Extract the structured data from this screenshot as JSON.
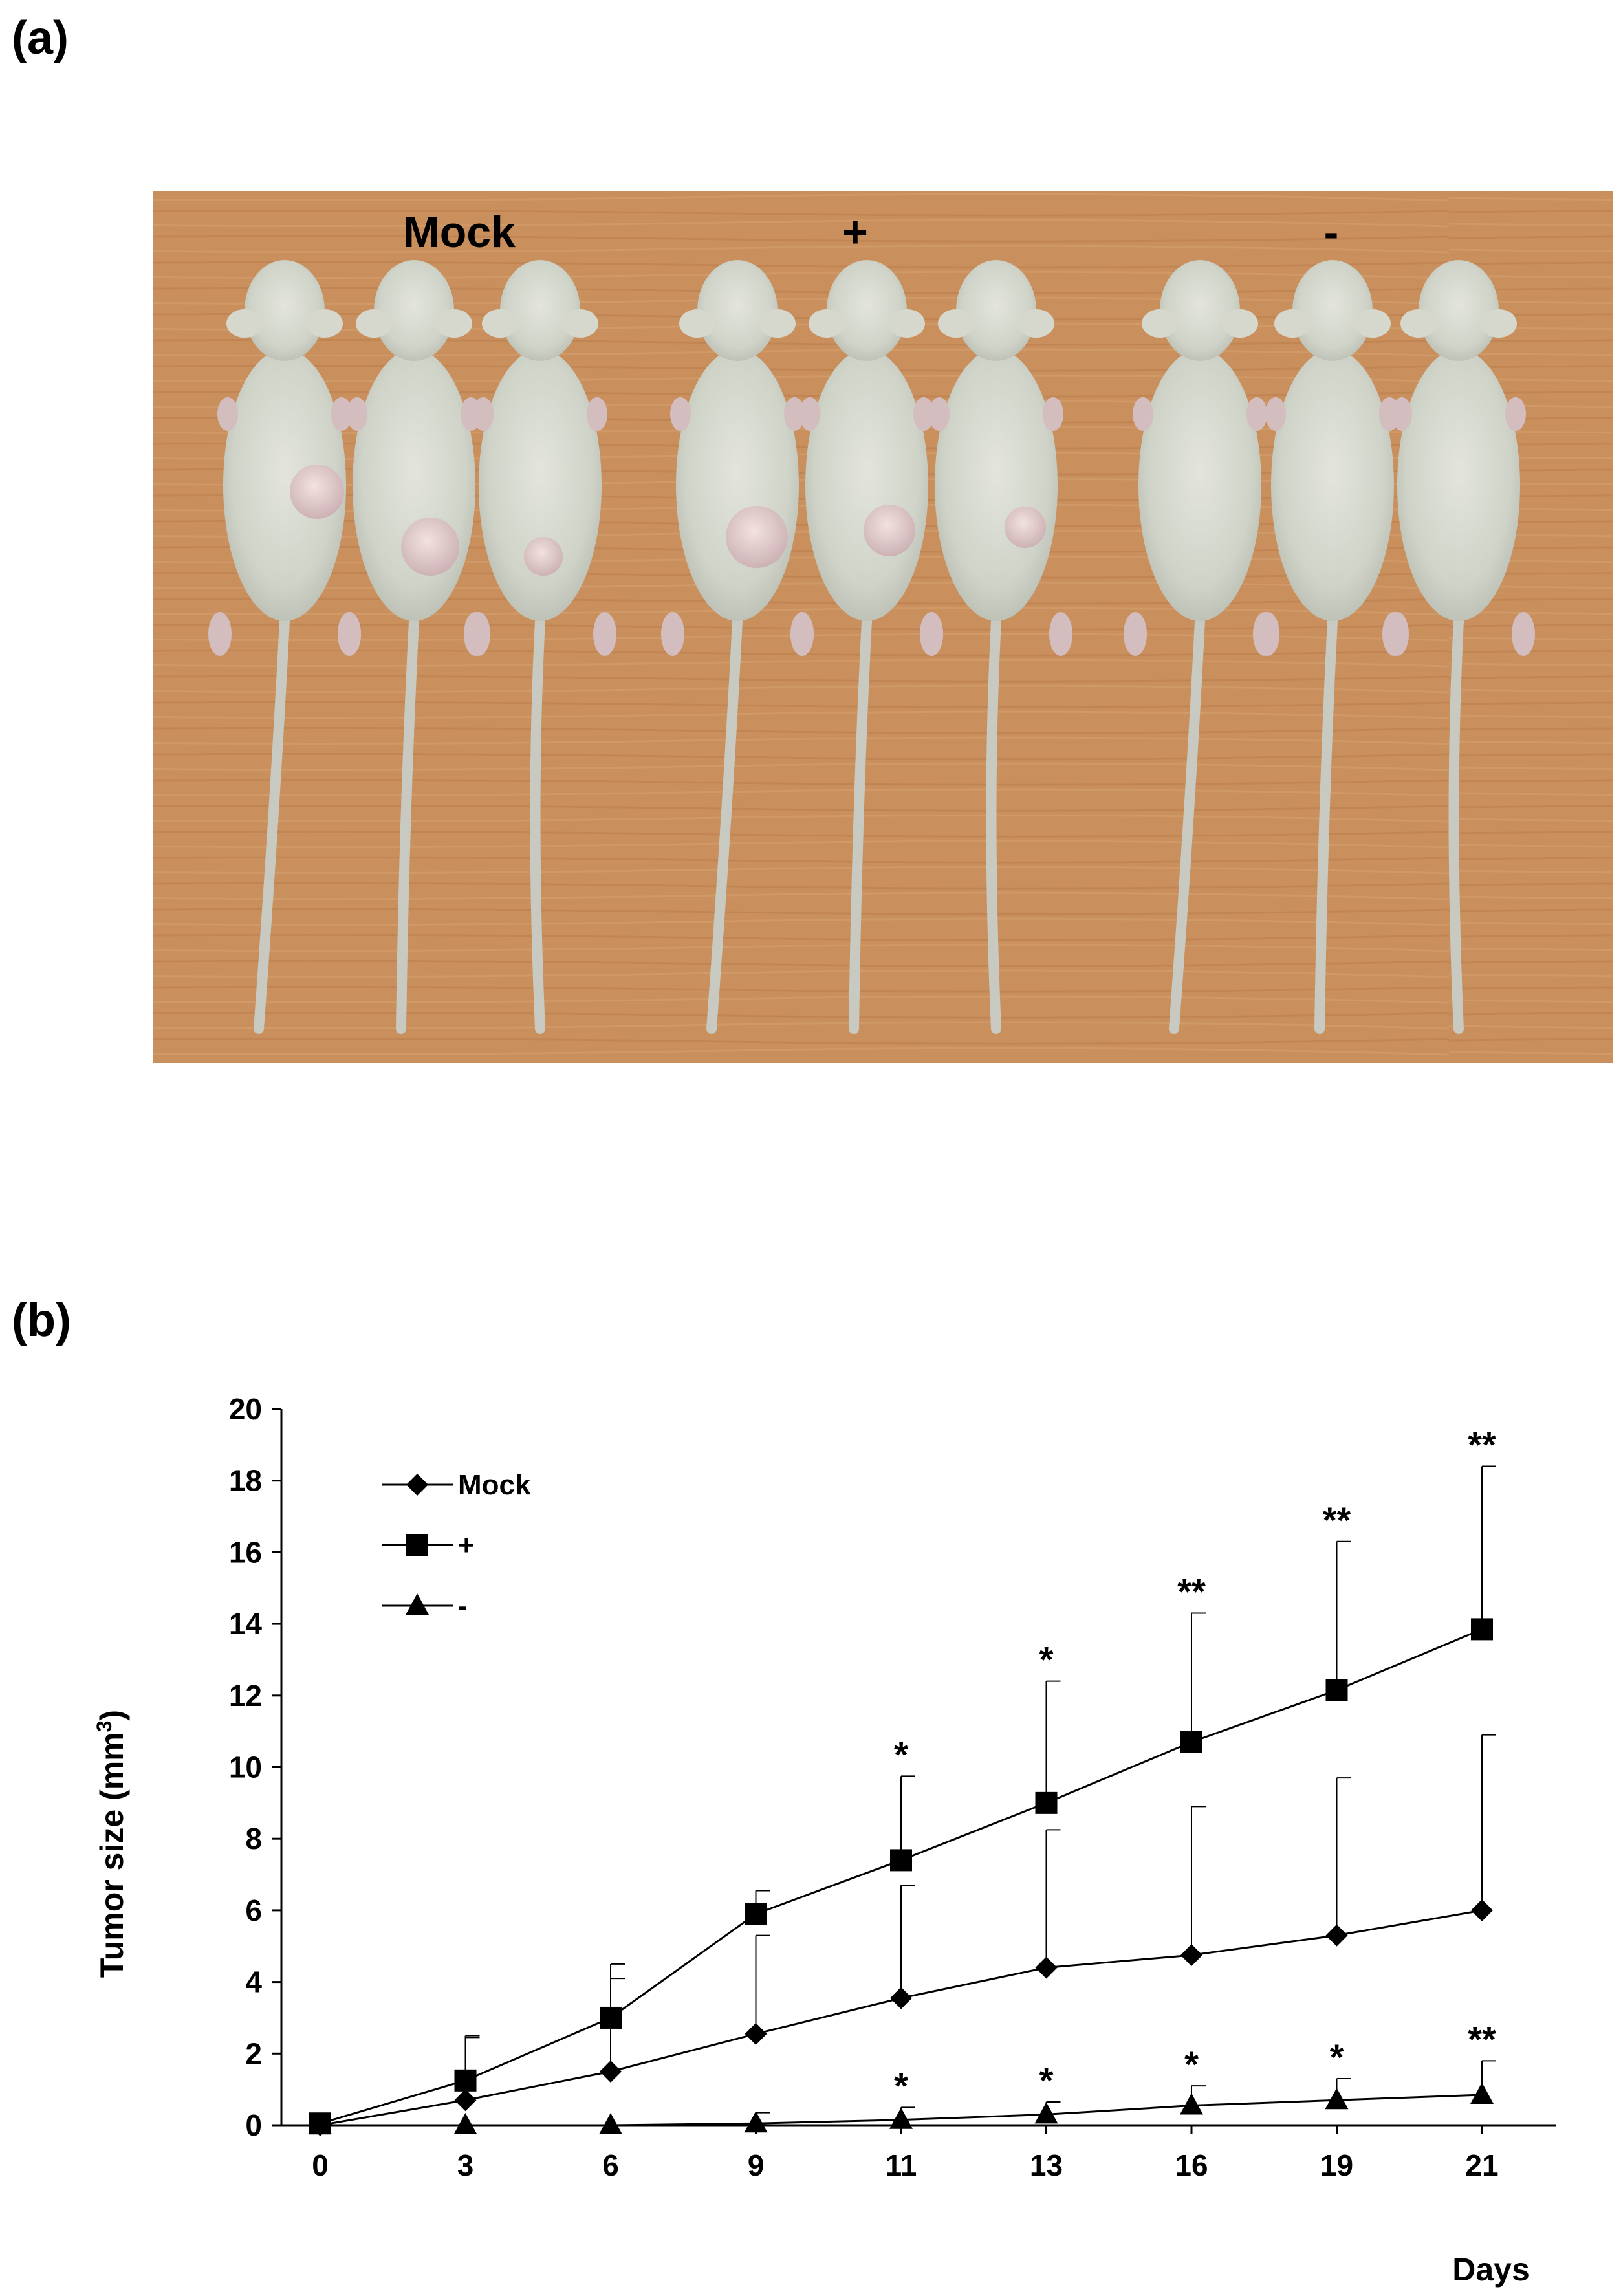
{
  "panels": {
    "a_label": "(a)",
    "b_label": "(b)"
  },
  "photo": {
    "group_labels": [
      "Mock",
      "+",
      "-"
    ],
    "background_color": "#c98f5c",
    "mouse_color": "#d9dbd0"
  },
  "chart_data": {
    "type": "line",
    "x": [
      0,
      3,
      6,
      9,
      11,
      13,
      16,
      19,
      21
    ],
    "categories": [
      "0",
      "3",
      "6",
      "9",
      "11",
      "13",
      "16",
      "19",
      "21"
    ],
    "xlabel": "Days",
    "ylabel": "Tumor size (mm",
    "ylabel_sup": "3",
    "ylabel_end": ")",
    "ylim": [
      0,
      20
    ],
    "yticks": [
      "0",
      "2",
      "4",
      "6",
      "8",
      "10",
      "12",
      "14",
      "16",
      "18",
      "20"
    ],
    "grid": false,
    "legend_position": "top-left",
    "series": [
      {
        "name": "Mock",
        "marker": "diamond",
        "values": [
          0,
          0.7,
          1.5,
          2.55,
          3.55,
          4.4,
          4.75,
          5.3,
          6.0
        ],
        "error": [
          0,
          1.8,
          2.6,
          2.75,
          3.15,
          3.85,
          4.15,
          4.4,
          4.9
        ]
      },
      {
        "name": "+",
        "marker": "square",
        "values": [
          0.05,
          1.25,
          3.0,
          5.9,
          7.4,
          9.0,
          10.7,
          12.15,
          13.85
        ],
        "error": [
          0,
          1.2,
          1.5,
          0.65,
          2.35,
          3.4,
          3.6,
          4.15,
          4.55
        ],
        "significance": [
          "",
          "",
          "",
          "",
          "*",
          "*",
          "**",
          "**",
          "**"
        ]
      },
      {
        "name": "-",
        "marker": "triangle",
        "values": [
          0,
          0,
          0,
          0.05,
          0.15,
          0.3,
          0.55,
          0.7,
          0.85
        ],
        "error": [
          0,
          0,
          0,
          0.3,
          0.35,
          0.35,
          0.55,
          0.6,
          0.95
        ],
        "significance": [
          "",
          "",
          "",
          "",
          "*",
          "*",
          "*",
          "*",
          "**"
        ]
      }
    ],
    "colors": {
      "line": "#000000"
    }
  }
}
